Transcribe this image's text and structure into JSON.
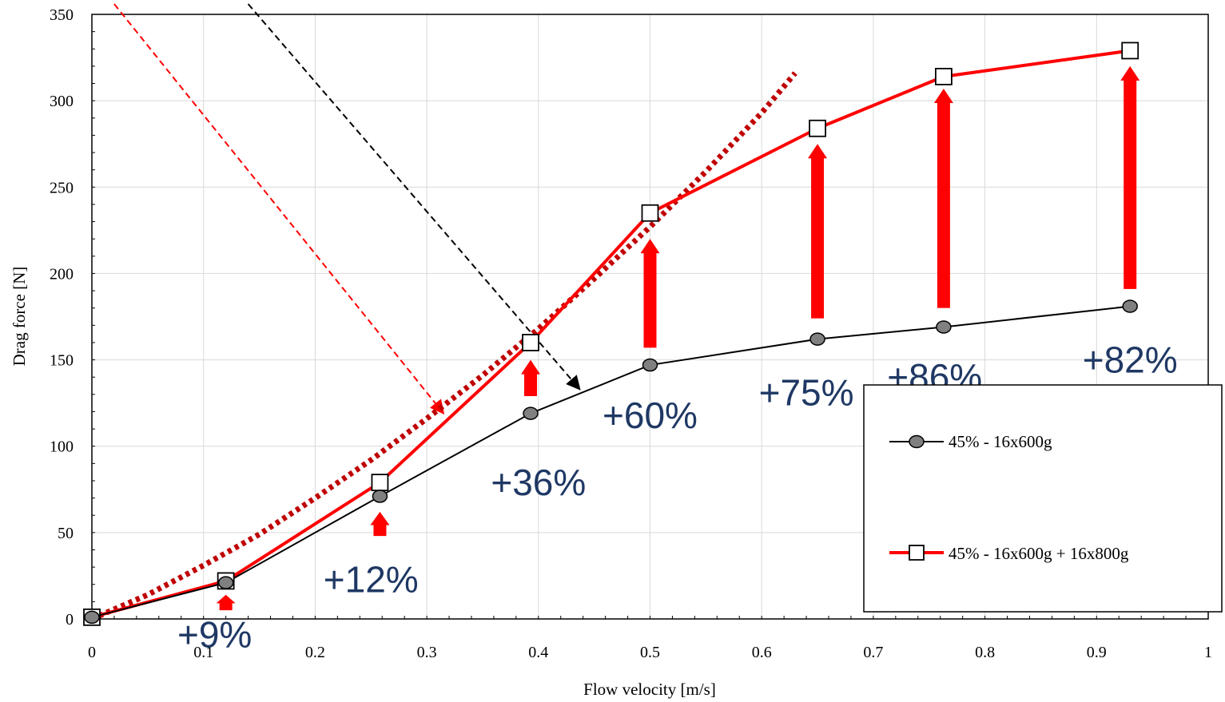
{
  "chart_data": {
    "type": "line",
    "title": "",
    "xlabel": "Flow velocity [m/s]",
    "ylabel": "Drag force [N]",
    "xlim": [
      0,
      1
    ],
    "ylim": [
      0,
      350
    ],
    "x_ticks": [
      "0",
      "0.1",
      "0.2",
      "0.3",
      "0.4",
      "0.5",
      "0.6",
      "0.7",
      "0.8",
      "0.9",
      "1"
    ],
    "y_ticks": [
      "0",
      "50",
      "100",
      "150",
      "200",
      "250",
      "300",
      "350"
    ],
    "grid": true,
    "legend_placement": "bottom-right",
    "series": [
      {
        "name": "45% - 16x600g",
        "color": "#000000",
        "marker": "circle",
        "marker_fill": "#808080",
        "x": [
          0,
          0.12,
          0.258,
          0.393,
          0.5,
          0.65,
          0.763,
          0.93
        ],
        "y": [
          1,
          21,
          71,
          119,
          147,
          162,
          169,
          181
        ]
      },
      {
        "name": "45% - 16x600g + 16x800g",
        "color": "#FF0000",
        "marker": "square",
        "marker_fill": "#FFFFFF",
        "x": [
          0,
          0.12,
          0.258,
          0.393,
          0.5,
          0.65,
          0.763,
          0.93
        ],
        "y": [
          1,
          22,
          79,
          160,
          235,
          284,
          314,
          329
        ]
      }
    ],
    "trend_curve": {
      "color": "#C00000",
      "style": "dotted",
      "x": [
        0,
        0.05,
        0.1,
        0.15,
        0.2,
        0.25,
        0.3,
        0.35,
        0.4,
        0.45,
        0.5,
        0.55,
        0.6,
        0.63
      ],
      "y": [
        0,
        14,
        31,
        49,
        70,
        92,
        116,
        141,
        168,
        197,
        227,
        259,
        293,
        316
      ]
    },
    "increase_arrows": [
      {
        "x": 0.12,
        "y_from": 5,
        "y_to": 14,
        "label": "+9%",
        "label_x": 0.11,
        "label_y": -9
      },
      {
        "x": 0.258,
        "y_from": 48,
        "y_to": 62,
        "label": "+12%",
        "label_x": 0.25,
        "label_y": 23
      },
      {
        "x": 0.393,
        "y_from": 129,
        "y_to": 150,
        "label": "+36%",
        "label_x": 0.4,
        "label_y": 79
      },
      {
        "x": 0.5,
        "y_from": 157,
        "y_to": 220,
        "label": "+60%",
        "label_x": 0.5,
        "label_y": 118
      },
      {
        "x": 0.65,
        "y_from": 174,
        "y_to": 275,
        "label": "+75%",
        "label_x": 0.64,
        "label_y": 131
      },
      {
        "x": 0.763,
        "y_from": 180,
        "y_to": 307,
        "label": "+86%",
        "label_x": 0.755,
        "label_y": 140
      },
      {
        "x": 0.93,
        "y_from": 191,
        "y_to": 320,
        "label": "+82%",
        "label_x": 0.93,
        "label_y": 150
      }
    ],
    "pointer_arrows": [
      {
        "color": "#FF0000",
        "x_from": 0.02,
        "y_from": 356,
        "x_to": 0.315,
        "y_to": 119
      },
      {
        "color": "#000000",
        "x_from": 0.14,
        "y_from": 356,
        "x_to": 0.437,
        "y_to": 133
      }
    ]
  }
}
